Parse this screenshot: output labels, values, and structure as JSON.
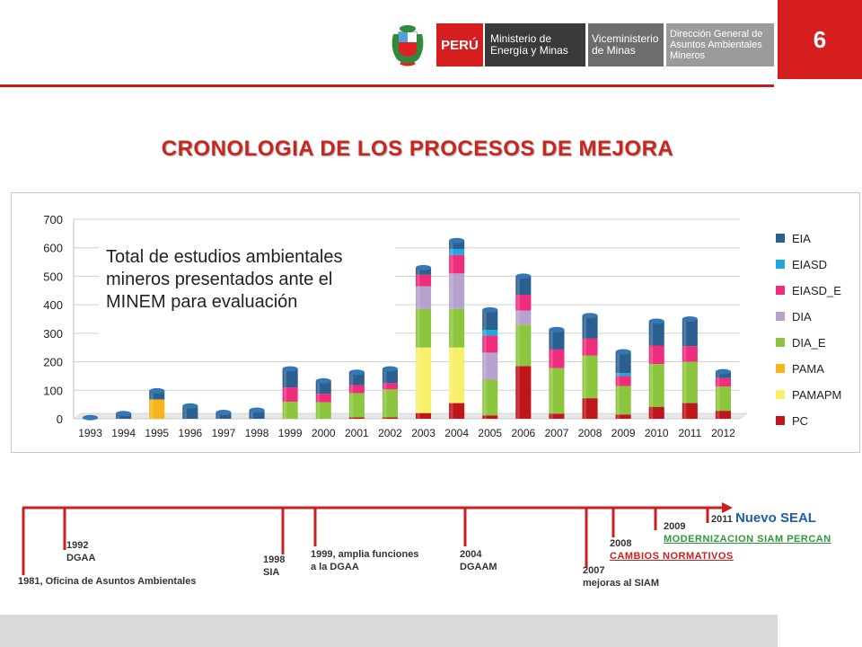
{
  "header": {
    "page_number": "6",
    "brand": "PERÚ",
    "ministry": "Ministerio de Energía y Minas",
    "vice_ministry": "Viceministerio de Minas",
    "direction": "Dirección General de Asuntos Ambientales Mineros",
    "crest_icon": "peru-coat-of-arms-icon"
  },
  "title": "CRONOLOGIA DE LOS PROCESOS DE MEJORA",
  "note": "Total de estudios ambientales mineros presentados ante el MINEM para evaluación",
  "colors": {
    "accent_red": "#c91b1b",
    "title_red": "#c9261f",
    "EIA": "#2a5f8f",
    "EIASD": "#1fa8e0",
    "EIASD_E": "#ee2d7c",
    "DIA": "#b6a2cc",
    "DIA_E": "#8cc63f",
    "PAMA": "#f6b51d",
    "PAMAPM": "#f9f06a",
    "PC": "#c0151b"
  },
  "chart_data": {
    "type": "bar",
    "stacked": true,
    "categories": [
      "1993",
      "1994",
      "1995",
      "1996",
      "1997",
      "1998",
      "1999",
      "2000",
      "2001",
      "2002",
      "2003",
      "2004",
      "2005",
      "2006",
      "2007",
      "2008",
      "2009",
      "2010",
      "2011",
      "2012"
    ],
    "ylim": [
      0,
      700
    ],
    "yticks": [
      "0",
      "100",
      "200",
      "300",
      "400",
      "500",
      "600",
      "700"
    ],
    "grid": true,
    "legend_position": "right",
    "series": [
      {
        "name": "PC",
        "color": "#c0151b",
        "values": [
          0,
          0,
          0,
          0,
          0,
          0,
          0,
          0,
          5,
          5,
          20,
          55,
          12,
          185,
          18,
          72,
          15,
          42,
          55,
          28
        ]
      },
      {
        "name": "PAMAPM",
        "color": "#f9f06a",
        "values": [
          0,
          0,
          0,
          0,
          0,
          0,
          0,
          0,
          0,
          0,
          230,
          195,
          0,
          0,
          0,
          0,
          0,
          0,
          0,
          0
        ]
      },
      {
        "name": "PAMA",
        "color": "#f6b51d",
        "values": [
          0,
          0,
          68,
          0,
          0,
          0,
          0,
          0,
          0,
          0,
          0,
          0,
          0,
          0,
          0,
          0,
          0,
          0,
          0,
          0
        ]
      },
      {
        "name": "DIA_E",
        "color": "#8cc63f",
        "values": [
          0,
          0,
          0,
          0,
          0,
          0,
          60,
          58,
          85,
          98,
          135,
          135,
          125,
          145,
          160,
          150,
          100,
          150,
          145,
          85
        ]
      },
      {
        "name": "DIA",
        "color": "#b6a2cc",
        "values": [
          0,
          0,
          0,
          0,
          0,
          0,
          0,
          0,
          0,
          0,
          80,
          125,
          95,
          50,
          0,
          0,
          0,
          0,
          0,
          0
        ]
      },
      {
        "name": "EIASD_E",
        "color": "#ee2d7c",
        "values": [
          0,
          0,
          0,
          0,
          0,
          0,
          50,
          30,
          28,
          22,
          40,
          65,
          60,
          55,
          65,
          60,
          35,
          65,
          55,
          30
        ]
      },
      {
        "name": "EIASD",
        "color": "#1fa8e0",
        "values": [
          0,
          0,
          0,
          0,
          0,
          0,
          0,
          0,
          0,
          0,
          0,
          20,
          20,
          0,
          0,
          0,
          10,
          0,
          0,
          0
        ]
      },
      {
        "name": "EIA",
        "color": "#2a5f8f",
        "values": [
          4,
          18,
          30,
          45,
          22,
          30,
          65,
          45,
          45,
          50,
          25,
          30,
          70,
          65,
          70,
          80,
          75,
          85,
          95,
          22
        ]
      }
    ],
    "legend_order": [
      "EIA",
      "EIASD",
      "EIASD_E",
      "DIA",
      "DIA_E",
      "PAMA",
      "PAMAPM",
      "PC"
    ]
  },
  "timeline": {
    "events": [
      {
        "year": "1981,",
        "text": "Oficina de Asuntos Ambientales"
      },
      {
        "year": "1992",
        "text": "DGAA"
      },
      {
        "year": "1998",
        "text": "SIA"
      },
      {
        "year": "1999,",
        "text": "amplia funciones"
      },
      {
        "year": "",
        "text": "a la DGAA"
      },
      {
        "year": "2004",
        "text": "DGAAM"
      },
      {
        "year": "2007",
        "text": "mejoras al SIAM"
      },
      {
        "year": "2008",
        "text": "CAMBIOS NORMATIVOS"
      },
      {
        "year": "2009",
        "text": "MODERNIZACION SIAM PERCAN"
      },
      {
        "year": "2011",
        "text": "Nuevo SEAL"
      }
    ]
  }
}
